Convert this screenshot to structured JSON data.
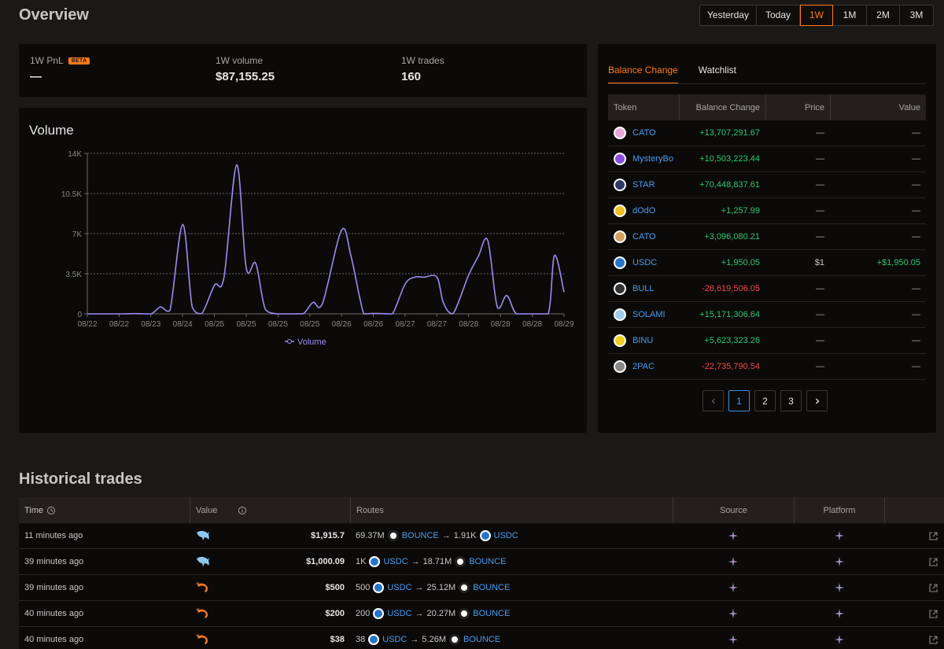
{
  "overview": {
    "title": "Overview",
    "periods": [
      "Yesterday",
      "Today",
      "1W",
      "1M",
      "2M",
      "3M"
    ],
    "active_period": "1W"
  },
  "stats": {
    "pnl_label": "1W PnL",
    "pnl_badge": "BETA",
    "pnl_value": "—",
    "volume_label": "1W volume",
    "volume_value": "$87,155.25",
    "trades_label": "1W trades",
    "trades_value": "160"
  },
  "volume": {
    "title": "Volume",
    "legend": "Volume",
    "series_color": "#9a8cf0"
  },
  "chart_data": {
    "type": "line",
    "title": "Volume",
    "x": [
      "08/22",
      "08/22",
      "08/23",
      "08/24",
      "08/25",
      "08/25",
      "08/25",
      "08/25",
      "08/26",
      "08/26",
      "08/27",
      "08/27",
      "08/28",
      "08/28",
      "08/28",
      "08/29"
    ],
    "y_ticks": [
      "0",
      "3.5K",
      "7K",
      "10.5K",
      "14K"
    ],
    "ylim": [
      0,
      14000
    ],
    "grid": true,
    "legend_position": "bottom",
    "series": [
      {
        "name": "Volume",
        "points": [
          [
            0,
            0
          ],
          [
            0.3,
            0
          ],
          [
            0.6,
            0
          ],
          [
            1.0,
            0
          ],
          [
            1.5,
            20
          ],
          [
            2.0,
            0
          ],
          [
            2.3,
            600
          ],
          [
            2.6,
            300
          ],
          [
            3.0,
            7800
          ],
          [
            3.3,
            600
          ],
          [
            3.6,
            20
          ],
          [
            4.0,
            2500
          ],
          [
            4.3,
            3200
          ],
          [
            4.7,
            13000
          ],
          [
            5.0,
            4000
          ],
          [
            5.3,
            4400
          ],
          [
            5.6,
            400
          ],
          [
            6.0,
            0
          ],
          [
            6.5,
            0
          ],
          [
            6.8,
            20
          ],
          [
            7.1,
            1000
          ],
          [
            7.4,
            900
          ],
          [
            8.0,
            7300
          ],
          [
            8.3,
            5000
          ],
          [
            8.7,
            0
          ],
          [
            9.0,
            40
          ],
          [
            9.3,
            20
          ],
          [
            9.6,
            0
          ],
          [
            10.0,
            2600
          ],
          [
            10.3,
            3200
          ],
          [
            10.6,
            3200
          ],
          [
            11.0,
            3200
          ],
          [
            11.2,
            1000
          ],
          [
            11.5,
            0
          ],
          [
            12.0,
            3400
          ],
          [
            12.3,
            5000
          ],
          [
            12.6,
            6400
          ],
          [
            12.9,
            600
          ],
          [
            13.2,
            1600
          ],
          [
            13.5,
            0
          ],
          [
            14.0,
            0
          ],
          [
            14.5,
            0
          ],
          [
            14.7,
            5100
          ],
          [
            15.0,
            1900
          ]
        ]
      }
    ]
  },
  "balance": {
    "tabs": [
      "Balance Change",
      "Watchlist"
    ],
    "active_tab": "Balance Change",
    "columns": [
      "Token",
      "Balance Change",
      "Price",
      "Value"
    ],
    "rows": [
      {
        "token": "CATO",
        "change": "+13,707,291.67",
        "price": "—",
        "value": "—",
        "sign": "pos",
        "color": "#e9a8d8"
      },
      {
        "token": "MysteryBox…",
        "change": "+10,503,223.44",
        "price": "—",
        "value": "—",
        "sign": "pos",
        "color": "#8a4de0"
      },
      {
        "token": "STAR",
        "change": "+70,448,837.61",
        "price": "—",
        "value": "—",
        "sign": "pos",
        "color": "#2a3a60"
      },
      {
        "token": "dOdO",
        "change": "+1,257.99",
        "price": "—",
        "value": "—",
        "sign": "pos",
        "color": "#f0c020"
      },
      {
        "token": "CATO",
        "change": "+3,096,080.21",
        "price": "—",
        "value": "—",
        "sign": "pos",
        "color": "#d4a060"
      },
      {
        "token": "USDC",
        "change": "+1,950.05",
        "price": "$1",
        "value": "+$1,950.05",
        "sign": "pos",
        "color": "#2775ca"
      },
      {
        "token": "BULL",
        "change": "-28,619,506.05",
        "price": "—",
        "value": "—",
        "sign": "neg",
        "color": "#333333"
      },
      {
        "token": "SOLAMI",
        "change": "+15,171,306.64",
        "price": "—",
        "value": "—",
        "sign": "pos",
        "color": "#a0d0e8"
      },
      {
        "token": "BINU",
        "change": "+5,623,323.26",
        "price": "—",
        "value": "—",
        "sign": "pos",
        "color": "#f0d020"
      },
      {
        "token": "2PAC",
        "change": "-22,735,790.54",
        "price": "—",
        "value": "—",
        "sign": "neg",
        "color": "#888888"
      }
    ],
    "pages": [
      "1",
      "2",
      "3"
    ],
    "active_page": "1"
  },
  "history": {
    "title": "Historical trades",
    "columns": [
      "Time",
      "Value",
      "Routes",
      "Source",
      "Platform"
    ],
    "rows": [
      {
        "time": "11 minutes ago",
        "value": "$1,915.7",
        "size_icon": "dolphin",
        "from_amt": "69.37M",
        "from_sym": "BOUNCE",
        "from_kind": "bounce",
        "to_amt": "1.91K",
        "to_sym": "USDC",
        "to_kind": "usdc"
      },
      {
        "time": "39 minutes ago",
        "value": "$1,000.09",
        "size_icon": "dolphin",
        "from_amt": "1K",
        "from_sym": "USDC",
        "from_kind": "usdc",
        "to_amt": "18.71M",
        "to_sym": "BOUNCE",
        "to_kind": "bounce"
      },
      {
        "time": "39 minutes ago",
        "value": "$500",
        "size_icon": "shrimp",
        "from_amt": "500",
        "from_sym": "USDC",
        "from_kind": "usdc",
        "to_amt": "25.12M",
        "to_sym": "BOUNCE",
        "to_kind": "bounce"
      },
      {
        "time": "40 minutes ago",
        "value": "$200",
        "size_icon": "shrimp",
        "from_amt": "200",
        "from_sym": "USDC",
        "from_kind": "usdc",
        "to_amt": "20.27M",
        "to_sym": "BOUNCE",
        "to_kind": "bounce"
      },
      {
        "time": "40 minutes ago",
        "value": "$38",
        "size_icon": "shrimp",
        "from_amt": "38",
        "from_sym": "USDC",
        "from_kind": "usdc",
        "to_amt": "5.26M",
        "to_sym": "BOUNCE",
        "to_kind": "bounce"
      }
    ]
  }
}
